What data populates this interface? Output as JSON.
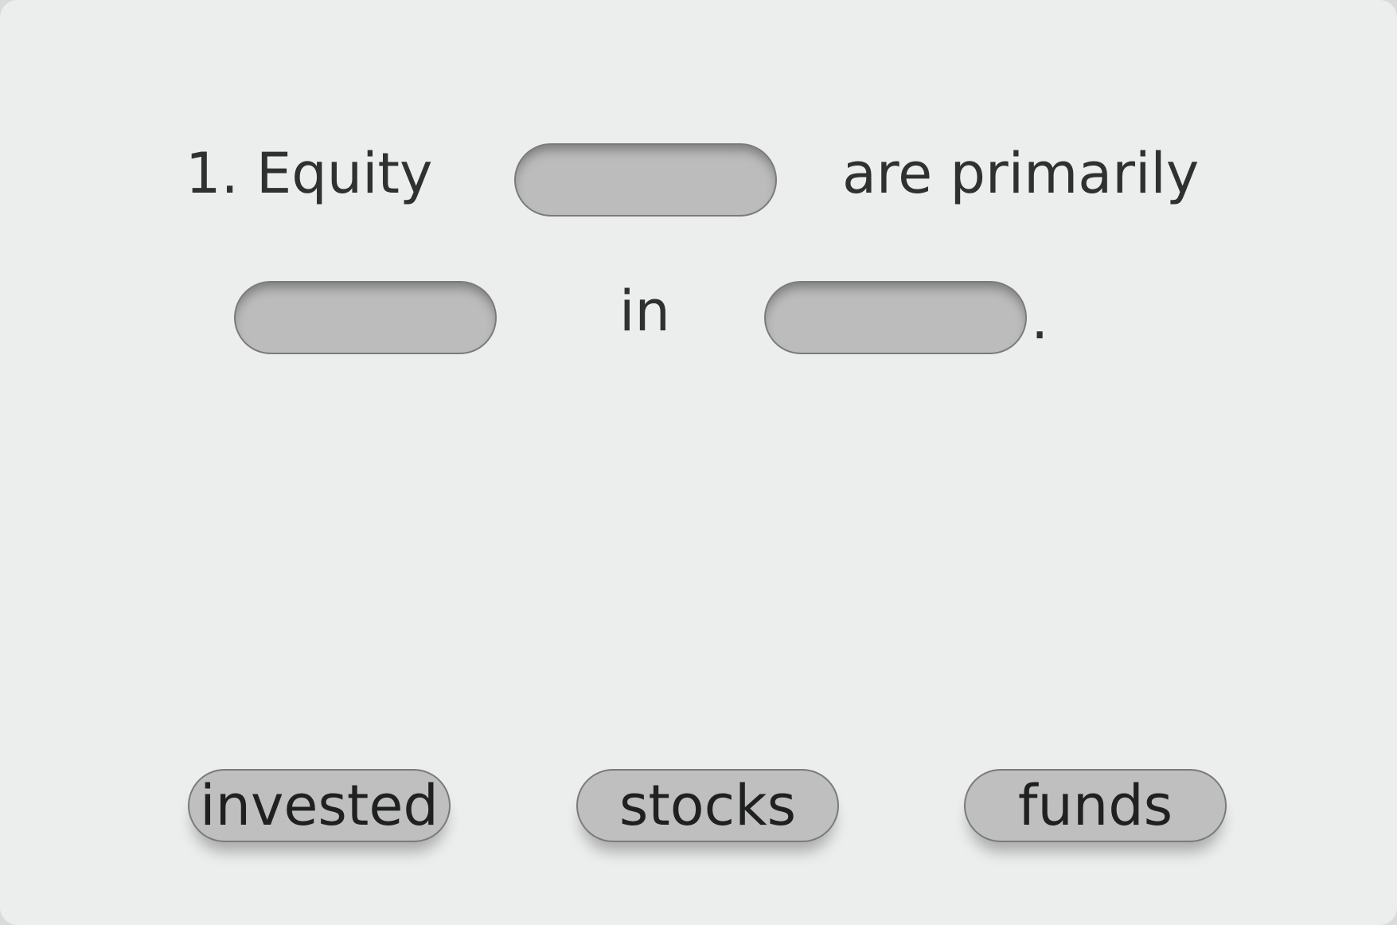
{
  "exercise": {
    "sentence": {
      "number_and_first_word": "1. Equity",
      "after_first_blank": "are primarily",
      "between_blanks": "in",
      "final_period": "."
    },
    "word_bank": [
      {
        "label": "invested"
      },
      {
        "label": "stocks"
      },
      {
        "label": "funds"
      }
    ]
  },
  "colors": {
    "background": "#eceeed",
    "slot_fill": "#bcbcbc",
    "chip_fill": "#bfbfbf",
    "border": "#7a7a7a",
    "text": "#2f3131"
  }
}
